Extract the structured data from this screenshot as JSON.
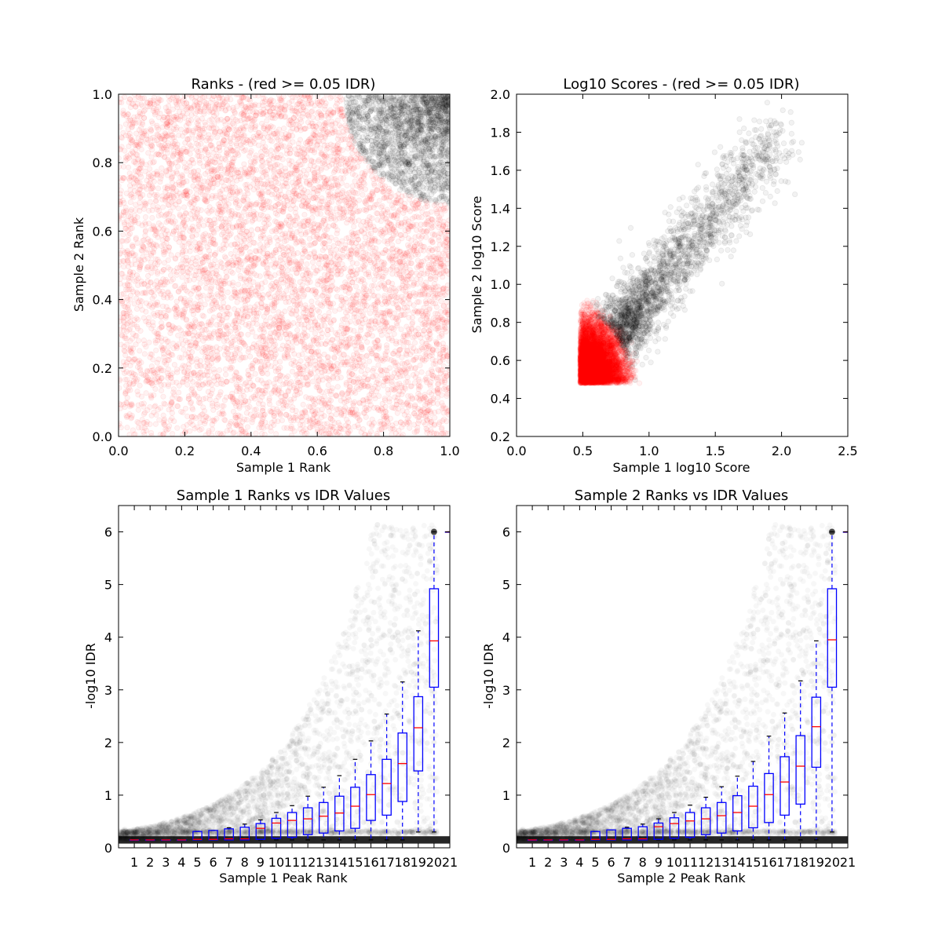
{
  "chart_data": [
    {
      "type": "scatter",
      "title": "Ranks - (red >= 0.05 IDR)",
      "xlabel": "Sample 1 Rank",
      "ylabel": "Sample 2 Rank",
      "xlim": [
        0.0,
        1.0
      ],
      "ylim": [
        0.0,
        1.0
      ],
      "xticks": [
        "0.0",
        "0.2",
        "0.4",
        "0.6",
        "0.8",
        "1.0"
      ],
      "yticks": [
        "0.0",
        "0.2",
        "0.4",
        "0.6",
        "0.8",
        "1.0"
      ],
      "grid": false,
      "colors": {
        "pass": "#000000",
        "fail": "#ff0000"
      },
      "point_alpha": 0.05,
      "threshold_curve": {
        "kind": "quarter-circle",
        "center": [
          1.0,
          1.0
        ],
        "radius": 0.32
      },
      "counts": {
        "pass": 1800,
        "fail": 6500
      }
    },
    {
      "type": "scatter",
      "title": "Log10 Scores - (red >= 0.05 IDR)",
      "xlabel": "Sample 1 log10 Score",
      "ylabel": "Sample 2 log10 Score",
      "xlim": [
        0.0,
        2.5
      ],
      "ylim": [
        0.2,
        2.0
      ],
      "xticks": [
        "0.0",
        "0.5",
        "1.0",
        "1.5",
        "2.0",
        "2.5"
      ],
      "yticks": [
        "0.2",
        "0.4",
        "0.6",
        "0.8",
        "1.0",
        "1.2",
        "1.4",
        "1.6",
        "1.8",
        "2.0"
      ],
      "grid": false,
      "colors": {
        "pass": "#000000",
        "fail": "#ff0000"
      },
      "point_alpha": 0.05,
      "min_score": 0.48,
      "threshold_curve": {
        "kind": "quarter-circle",
        "center": [
          0.48,
          0.48
        ],
        "radius": 0.37
      },
      "counts": {
        "pass": 2200,
        "fail": 6000
      }
    },
    {
      "type": "box",
      "title": "Sample 1 Ranks vs IDR Values",
      "xlabel": "Sample 1 Peak Rank",
      "ylabel": "-log10 IDR",
      "xlim": [
        0,
        21
      ],
      "ylim": [
        0,
        6.5
      ],
      "xticks": [
        "1",
        "2",
        "3",
        "4",
        "5",
        "6",
        "7",
        "8",
        "9",
        "10",
        "11",
        "12",
        "13",
        "14",
        "15",
        "16",
        "17",
        "18",
        "19",
        "20",
        "21"
      ],
      "yticks": [
        "0",
        "1",
        "2",
        "3",
        "4",
        "5",
        "6"
      ],
      "grid": false,
      "colors": {
        "box": "#0000ff",
        "median": "#ff0000",
        "whisker": "#0000ff",
        "points": "#000000"
      },
      "boxes": [
        {
          "x": 1,
          "whislo": 0.15,
          "q1": 0.15,
          "med": 0.15,
          "q3": 0.15,
          "whishi": 0.15
        },
        {
          "x": 2,
          "whislo": 0.15,
          "q1": 0.15,
          "med": 0.15,
          "q3": 0.15,
          "whishi": 0.15
        },
        {
          "x": 3,
          "whislo": 0.15,
          "q1": 0.15,
          "med": 0.15,
          "q3": 0.15,
          "whishi": 0.15
        },
        {
          "x": 4,
          "whislo": 0.15,
          "q1": 0.15,
          "med": 0.15,
          "q3": 0.15,
          "whishi": 0.15
        },
        {
          "x": 5,
          "whislo": 0.15,
          "q1": 0.15,
          "med": 0.16,
          "q3": 0.31,
          "whishi": 0.31
        },
        {
          "x": 6,
          "whislo": 0.15,
          "q1": 0.15,
          "med": 0.16,
          "q3": 0.33,
          "whishi": 0.33
        },
        {
          "x": 7,
          "whislo": 0.15,
          "q1": 0.15,
          "med": 0.17,
          "q3": 0.36,
          "whishi": 0.38
        },
        {
          "x": 8,
          "whislo": 0.15,
          "q1": 0.15,
          "med": 0.17,
          "q3": 0.39,
          "whishi": 0.45
        },
        {
          "x": 9,
          "whislo": 0.15,
          "q1": 0.16,
          "med": 0.37,
          "q3": 0.46,
          "whishi": 0.53
        },
        {
          "x": 10,
          "whislo": 0.15,
          "q1": 0.18,
          "med": 0.47,
          "q3": 0.56,
          "whishi": 0.67
        },
        {
          "x": 11,
          "whislo": 0.15,
          "q1": 0.2,
          "med": 0.52,
          "q3": 0.67,
          "whishi": 0.8
        },
        {
          "x": 12,
          "whislo": 0.15,
          "q1": 0.25,
          "med": 0.55,
          "q3": 0.76,
          "whishi": 0.98
        },
        {
          "x": 13,
          "whislo": 0.15,
          "q1": 0.28,
          "med": 0.6,
          "q3": 0.86,
          "whishi": 1.15
        },
        {
          "x": 14,
          "whislo": 0.15,
          "q1": 0.32,
          "med": 0.66,
          "q3": 0.98,
          "whishi": 1.37
        },
        {
          "x": 15,
          "whislo": 0.15,
          "q1": 0.37,
          "med": 0.79,
          "q3": 1.15,
          "whishi": 1.68
        },
        {
          "x": 16,
          "whislo": 0.15,
          "q1": 0.52,
          "med": 1.01,
          "q3": 1.39,
          "whishi": 2.03
        },
        {
          "x": 17,
          "whislo": 0.15,
          "q1": 0.62,
          "med": 1.22,
          "q3": 1.68,
          "whishi": 2.54
        },
        {
          "x": 18,
          "whislo": 0.15,
          "q1": 0.88,
          "med": 1.6,
          "q3": 2.18,
          "whishi": 3.15
        },
        {
          "x": 19,
          "whislo": 0.3,
          "q1": 1.46,
          "med": 2.28,
          "q3": 2.87,
          "whishi": 4.12
        },
        {
          "x": 20,
          "whislo": 0.3,
          "q1": 3.05,
          "med": 3.93,
          "q3": 4.92,
          "whishi": 6.0
        },
        {
          "x": 21,
          "whislo": 6.0,
          "q1": 6.0,
          "med": 6.0,
          "q3": 6.0,
          "whishi": 6.0
        }
      ],
      "max_value": 6.0,
      "baseline_value": 0.15
    },
    {
      "type": "box",
      "title": "Sample 2 Ranks vs IDR Values",
      "xlabel": "Sample 2 Peak Rank",
      "ylabel": "-log10 IDR",
      "xlim": [
        0,
        21
      ],
      "ylim": [
        0,
        6.5
      ],
      "xticks": [
        "1",
        "2",
        "3",
        "4",
        "5",
        "6",
        "7",
        "8",
        "9",
        "10",
        "11",
        "12",
        "13",
        "14",
        "15",
        "16",
        "17",
        "18",
        "19",
        "20",
        "21"
      ],
      "yticks": [
        "0",
        "1",
        "2",
        "3",
        "4",
        "5",
        "6"
      ],
      "grid": false,
      "colors": {
        "box": "#0000ff",
        "median": "#ff0000",
        "whisker": "#0000ff",
        "points": "#000000"
      },
      "boxes": [
        {
          "x": 1,
          "whislo": 0.15,
          "q1": 0.15,
          "med": 0.15,
          "q3": 0.15,
          "whishi": 0.15
        },
        {
          "x": 2,
          "whislo": 0.15,
          "q1": 0.15,
          "med": 0.15,
          "q3": 0.15,
          "whishi": 0.15
        },
        {
          "x": 3,
          "whislo": 0.15,
          "q1": 0.15,
          "med": 0.15,
          "q3": 0.15,
          "whishi": 0.15
        },
        {
          "x": 4,
          "whislo": 0.15,
          "q1": 0.15,
          "med": 0.15,
          "q3": 0.15,
          "whishi": 0.15
        },
        {
          "x": 5,
          "whislo": 0.15,
          "q1": 0.15,
          "med": 0.16,
          "q3": 0.31,
          "whishi": 0.31
        },
        {
          "x": 6,
          "whislo": 0.15,
          "q1": 0.15,
          "med": 0.16,
          "q3": 0.34,
          "whishi": 0.34
        },
        {
          "x": 7,
          "whislo": 0.15,
          "q1": 0.15,
          "med": 0.17,
          "q3": 0.37,
          "whishi": 0.39
        },
        {
          "x": 8,
          "whislo": 0.15,
          "q1": 0.15,
          "med": 0.17,
          "q3": 0.4,
          "whishi": 0.45
        },
        {
          "x": 9,
          "whislo": 0.15,
          "q1": 0.16,
          "med": 0.4,
          "q3": 0.47,
          "whishi": 0.55
        },
        {
          "x": 10,
          "whislo": 0.15,
          "q1": 0.18,
          "med": 0.46,
          "q3": 0.57,
          "whishi": 0.67
        },
        {
          "x": 11,
          "whislo": 0.15,
          "q1": 0.2,
          "med": 0.51,
          "q3": 0.67,
          "whishi": 0.81
        },
        {
          "x": 12,
          "whislo": 0.15,
          "q1": 0.25,
          "med": 0.55,
          "q3": 0.76,
          "whishi": 0.96
        },
        {
          "x": 13,
          "whislo": 0.15,
          "q1": 0.28,
          "med": 0.61,
          "q3": 0.86,
          "whishi": 1.16
        },
        {
          "x": 14,
          "whislo": 0.15,
          "q1": 0.32,
          "med": 0.67,
          "q3": 0.99,
          "whishi": 1.36
        },
        {
          "x": 15,
          "whislo": 0.15,
          "q1": 0.38,
          "med": 0.79,
          "q3": 1.17,
          "whishi": 1.64
        },
        {
          "x": 16,
          "whislo": 0.15,
          "q1": 0.48,
          "med": 1.01,
          "q3": 1.41,
          "whishi": 2.12
        },
        {
          "x": 17,
          "whislo": 0.15,
          "q1": 0.62,
          "med": 1.25,
          "q3": 1.73,
          "whishi": 2.56
        },
        {
          "x": 18,
          "whislo": 0.15,
          "q1": 0.83,
          "med": 1.55,
          "q3": 2.13,
          "whishi": 3.17
        },
        {
          "x": 19,
          "whislo": 0.15,
          "q1": 1.53,
          "med": 2.3,
          "q3": 2.86,
          "whishi": 3.93
        },
        {
          "x": 20,
          "whislo": 0.3,
          "q1": 3.05,
          "med": 3.95,
          "q3": 4.92,
          "whishi": 6.0
        },
        {
          "x": 21,
          "whislo": 6.0,
          "q1": 6.0,
          "med": 6.0,
          "q3": 6.0,
          "whishi": 6.0
        }
      ],
      "max_value": 6.0,
      "baseline_value": 0.15
    }
  ]
}
